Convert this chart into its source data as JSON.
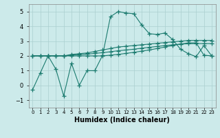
{
  "xlabel": "Humidex (Indice chaleur)",
  "x": [
    0,
    1,
    2,
    3,
    4,
    5,
    6,
    7,
    8,
    9,
    10,
    11,
    12,
    13,
    14,
    15,
    16,
    17,
    18,
    19,
    20,
    21,
    22,
    23
  ],
  "line1": [
    -0.3,
    0.85,
    2.0,
    1.1,
    -0.7,
    1.5,
    0.0,
    1.0,
    1.0,
    2.05,
    4.65,
    5.0,
    4.9,
    4.85,
    4.1,
    3.5,
    3.45,
    3.55,
    3.1,
    2.45,
    2.15,
    1.95,
    2.7,
    2.0
  ],
  "line2": [
    2.0,
    2.0,
    2.0,
    2.0,
    2.0,
    2.1,
    2.15,
    2.2,
    2.3,
    2.4,
    2.5,
    2.6,
    2.65,
    2.7,
    2.75,
    2.8,
    2.85,
    2.9,
    2.95,
    3.0,
    3.05,
    3.05,
    3.05,
    3.05
  ],
  "line3": [
    2.0,
    2.0,
    2.0,
    2.0,
    2.0,
    2.05,
    2.08,
    2.12,
    2.17,
    2.22,
    2.28,
    2.35,
    2.4,
    2.45,
    2.52,
    2.58,
    2.64,
    2.7,
    2.75,
    2.8,
    2.82,
    2.83,
    2.83,
    2.83
  ],
  "line4": [
    2.0,
    2.0,
    2.0,
    2.0,
    2.0,
    2.0,
    2.0,
    2.0,
    2.0,
    2.0,
    2.05,
    2.1,
    2.17,
    2.24,
    2.32,
    2.4,
    2.5,
    2.6,
    2.7,
    2.8,
    2.88,
    2.88,
    2.05,
    2.0
  ],
  "line_color": "#1a7a6e",
  "bg_color": "#cceaea",
  "grid_color": "#aacfcf",
  "ylim": [
    -1.5,
    5.5
  ],
  "yticks": [
    -1,
    0,
    1,
    2,
    3,
    4,
    5
  ],
  "xtick_labels": [
    "0",
    "1",
    "2",
    "3",
    "4",
    "5",
    "6",
    "7",
    "8",
    "9",
    "10",
    "11",
    "12",
    "13",
    "14",
    "15",
    "16",
    "17",
    "18",
    "19",
    "20",
    "21",
    "22",
    "23"
  ]
}
